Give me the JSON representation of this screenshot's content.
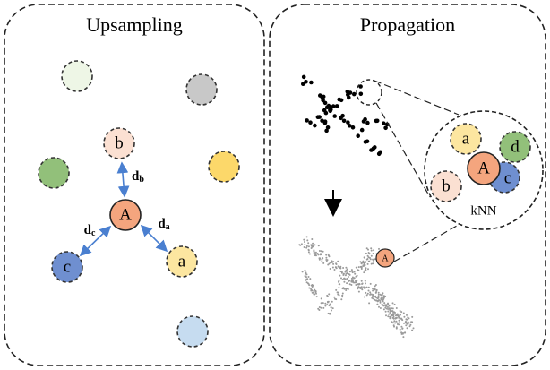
{
  "panels": [
    {
      "title": "Upsampling",
      "nodes": [
        "b",
        "A",
        "c",
        "a"
      ],
      "distances": [
        {
          "symbol": "d",
          "subscript": "b"
        },
        {
          "symbol": "d",
          "subscript": "c"
        },
        {
          "symbol": "d",
          "subscript": "a"
        }
      ]
    },
    {
      "title": "Propagation",
      "neighborhood": {
        "nodes": [
          "a",
          "d",
          "A",
          "c",
          "b"
        ],
        "label": "kNN"
      },
      "query_node": "A"
    }
  ]
}
